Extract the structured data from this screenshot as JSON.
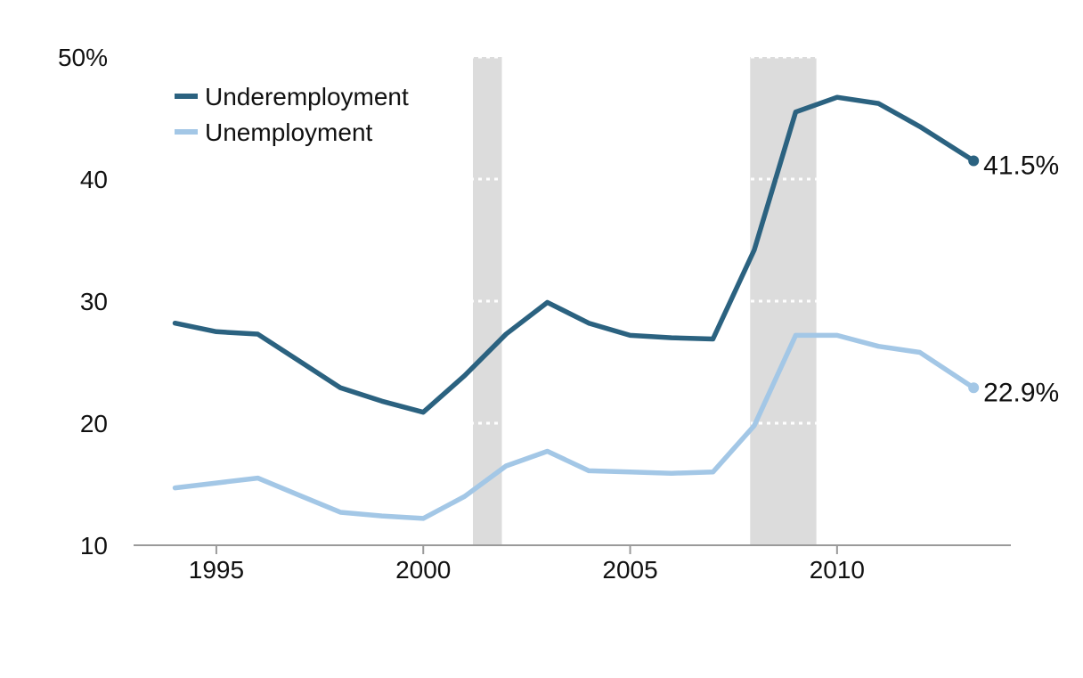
{
  "chart_data": {
    "type": "line",
    "title": "",
    "xlabel": "",
    "ylabel": "",
    "xlim": [
      1993,
      2014.2
    ],
    "ylim": [
      10,
      50
    ],
    "y_ticks": [
      {
        "value": 10,
        "label": "10"
      },
      {
        "value": 20,
        "label": "20"
      },
      {
        "value": 30,
        "label": "30"
      },
      {
        "value": 40,
        "label": "40"
      },
      {
        "value": 50,
        "label": "50%"
      }
    ],
    "x_ticks": [
      {
        "value": 1995,
        "label": "1995"
      },
      {
        "value": 2000,
        "label": "2000"
      },
      {
        "value": 2005,
        "label": "2005"
      },
      {
        "value": 2010,
        "label": "2010"
      }
    ],
    "grid": true,
    "legend_position": "top-left",
    "recession_shading": [
      {
        "start": 2001.2,
        "end": 2001.9
      },
      {
        "start": 2007.9,
        "end": 2009.5
      }
    ],
    "series": [
      {
        "name": "Underemployment",
        "color": "#2b6280",
        "x": [
          1994,
          1995,
          1996,
          1997,
          1998,
          1999,
          2000,
          2001,
          2002,
          2003,
          2004,
          2005,
          2006,
          2007,
          2008,
          2009,
          2010,
          2011,
          2012,
          2013.3
        ],
        "values": [
          28.2,
          27.5,
          27.3,
          25.1,
          22.9,
          21.8,
          20.9,
          23.9,
          27.3,
          29.9,
          28.2,
          27.2,
          27.0,
          26.9,
          34.2,
          45.5,
          46.7,
          46.2,
          44.3,
          41.5
        ],
        "end_label": "41.5%"
      },
      {
        "name": "Unemployment",
        "color": "#a3c7e6",
        "x": [
          1994,
          1995,
          1996,
          1997,
          1998,
          1999,
          2000,
          2001,
          2002,
          2003,
          2004,
          2005,
          2006,
          2007,
          2008,
          2009,
          2010,
          2011,
          2012,
          2013.3
        ],
        "values": [
          14.7,
          15.1,
          15.5,
          14.1,
          12.7,
          12.4,
          12.2,
          14.0,
          16.5,
          17.7,
          16.1,
          16.0,
          15.9,
          16.0,
          19.8,
          27.2,
          27.2,
          26.3,
          25.8,
          22.9
        ],
        "end_label": "22.9%"
      }
    ]
  }
}
